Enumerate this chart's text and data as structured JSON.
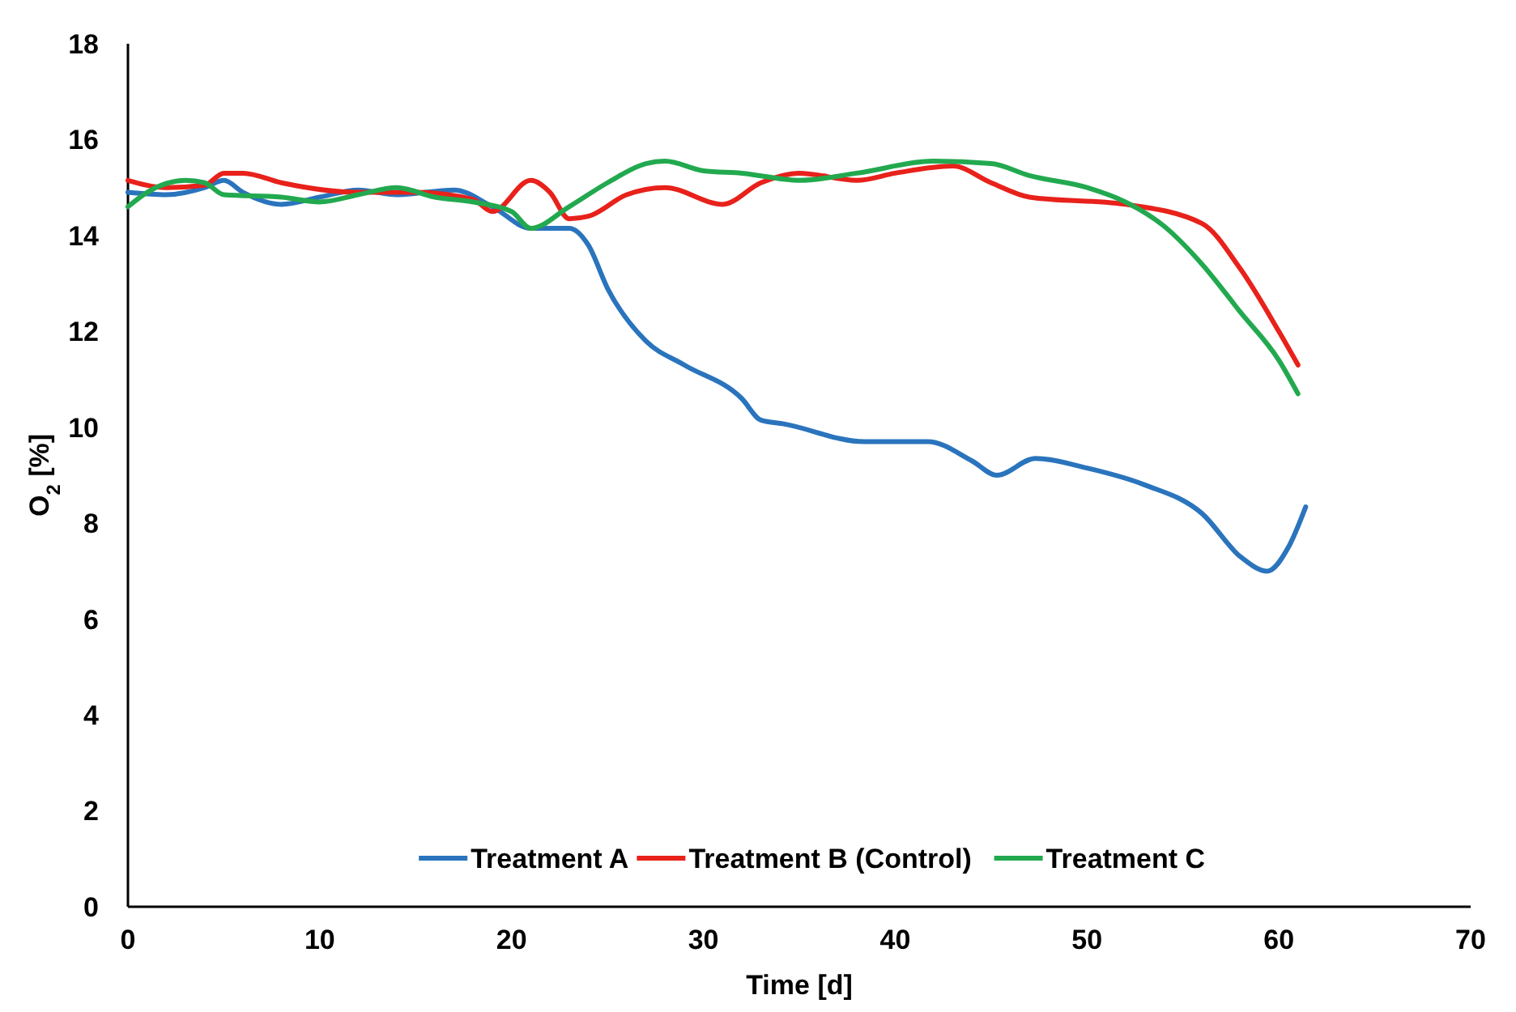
{
  "chart_data": {
    "type": "line",
    "xlabel": "Time [d]",
    "ylabel": "O$_{2}$ [%]",
    "xlim": [
      0,
      70
    ],
    "xticks": [
      0,
      10,
      20,
      30,
      40,
      50,
      60,
      70
    ],
    "ylim": [
      0,
      18
    ],
    "yticks": [
      0,
      2,
      4,
      6,
      8,
      10,
      12,
      14,
      16,
      18
    ],
    "grid": false,
    "legend": "bottom",
    "marker": "none",
    "line_style": "solid",
    "series": [
      {
        "name": "Treatment A",
        "color": "#2a74bd",
        "x": [
          0,
          2,
          4,
          5,
          6,
          8,
          10,
          12,
          14,
          17,
          19,
          21,
          23,
          24,
          25,
          27,
          29,
          32,
          33,
          34.2,
          38.4,
          41.7,
          44,
          45.3,
          47.3,
          50,
          53,
          56,
          58,
          59.4,
          60.5,
          61.4
        ],
        "values": [
          14.9,
          14.85,
          15.0,
          15.15,
          14.9,
          14.65,
          14.8,
          14.95,
          14.85,
          14.95,
          14.6,
          14.15,
          14.15,
          13.8,
          12.9,
          11.8,
          11.3,
          10.6,
          10.15,
          10.07,
          9.7,
          9.7,
          9.3,
          9.0,
          9.35,
          9.15,
          8.8,
          8.2,
          7.3,
          7.0,
          7.5,
          8.34
        ]
      },
      {
        "name": "Treatment B (Control)",
        "color": "#e8211b",
        "x": [
          0,
          2,
          4,
          5,
          6,
          8,
          12,
          15,
          18,
          19,
          21,
          22,
          23,
          24,
          26,
          28,
          31,
          33,
          35,
          38,
          40,
          43,
          45,
          47,
          52,
          56,
          58,
          60,
          61
        ],
        "values": [
          15.15,
          15.0,
          15.05,
          15.3,
          15.3,
          15.1,
          14.9,
          14.9,
          14.75,
          14.5,
          15.15,
          14.9,
          14.35,
          14.4,
          14.85,
          15.0,
          14.65,
          15.1,
          15.3,
          15.15,
          15.3,
          15.45,
          15.1,
          14.8,
          14.65,
          14.25,
          13.3,
          12.0,
          11.3
        ]
      },
      {
        "name": "Treatment C",
        "color": "#22a94f",
        "x": [
          0,
          1,
          3,
          4,
          5,
          8,
          10,
          12,
          14,
          16,
          18,
          20,
          21,
          23,
          25,
          27,
          28,
          30,
          32,
          35,
          38,
          42,
          45,
          47,
          50,
          52,
          54,
          56,
          58,
          60,
          61
        ],
        "values": [
          14.6,
          14.9,
          15.15,
          15.1,
          14.85,
          14.8,
          14.7,
          14.85,
          15.0,
          14.8,
          14.7,
          14.5,
          14.15,
          14.6,
          15.1,
          15.5,
          15.55,
          15.35,
          15.3,
          15.15,
          15.3,
          15.55,
          15.5,
          15.25,
          15.0,
          14.7,
          14.2,
          13.4,
          12.4,
          11.4,
          10.7
        ]
      }
    ]
  }
}
